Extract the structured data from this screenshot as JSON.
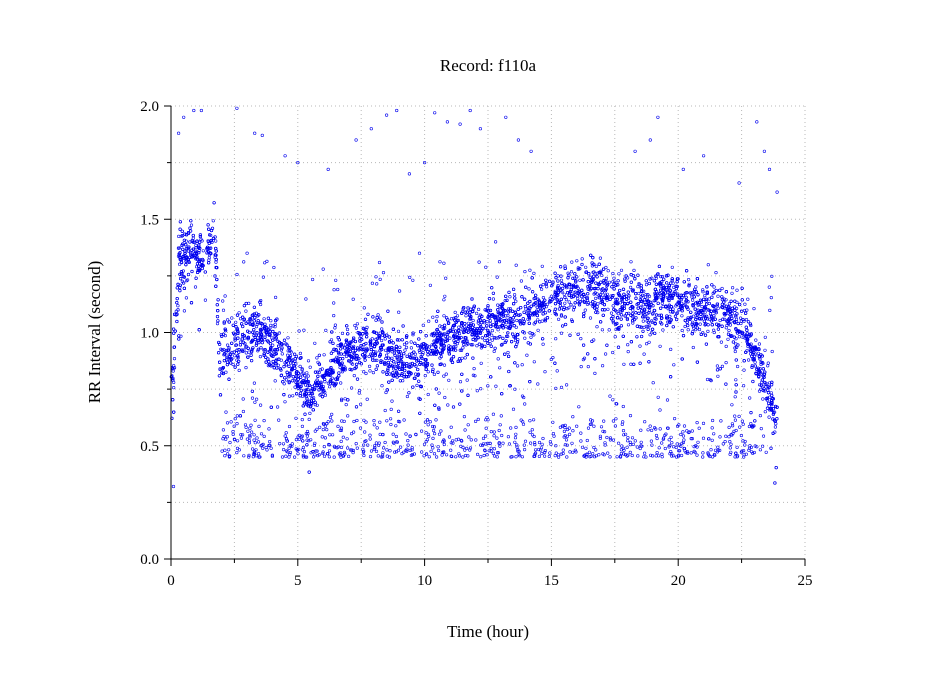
{
  "chart_data": {
    "type": "scatter",
    "title": "Record:  f110a",
    "xlabel": "Time (hour)",
    "ylabel": "RR Interval (second)",
    "xlim": [
      0,
      25
    ],
    "ylim": [
      0,
      2.0
    ],
    "x_ticks": [
      0,
      5,
      10,
      15,
      20,
      25
    ],
    "x_tick_labels": [
      "0",
      "5",
      "10",
      "15",
      "20",
      "25"
    ],
    "x_minor_ticks": [
      2.5,
      7.5,
      12.5,
      17.5,
      22.5
    ],
    "y_ticks": [
      0,
      0.5,
      1.0,
      1.5,
      2.0
    ],
    "y_tick_labels": [
      "0.0",
      "0.5",
      "1.0",
      "1.5",
      "2.0"
    ],
    "y_minor_ticks": [
      0.25,
      0.75,
      1.25,
      1.75
    ],
    "grid": true,
    "marker": "open-circle",
    "color": "#0000ee",
    "series": [
      {
        "trend": [
          [
            0.0,
            0.7,
            0.12
          ],
          [
            0.3,
            1.3,
            0.12
          ],
          [
            0.8,
            1.38,
            0.1
          ],
          [
            1.3,
            1.3,
            0.1
          ],
          [
            1.7,
            1.52,
            0.08
          ],
          [
            1.9,
            0.92,
            0.12
          ],
          [
            2.5,
            0.95,
            0.12
          ],
          [
            3.5,
            1.02,
            0.1
          ],
          [
            4.5,
            0.88,
            0.1
          ],
          [
            5.5,
            0.72,
            0.07
          ],
          [
            6.5,
            0.88,
            0.09
          ],
          [
            7.5,
            0.95,
            0.1
          ],
          [
            8.5,
            0.92,
            0.1
          ],
          [
            9.5,
            0.85,
            0.09
          ],
          [
            10.5,
            0.95,
            0.1
          ],
          [
            11.5,
            1.0,
            0.1
          ],
          [
            12.5,
            1.05,
            0.09
          ],
          [
            13.5,
            1.05,
            0.1
          ],
          [
            14.5,
            1.12,
            0.08
          ],
          [
            15.3,
            1.18,
            0.12
          ],
          [
            16.5,
            1.2,
            0.12
          ],
          [
            17.5,
            1.15,
            0.12
          ],
          [
            18.5,
            1.12,
            0.12
          ],
          [
            19.5,
            1.15,
            0.1
          ],
          [
            20.5,
            1.12,
            0.1
          ],
          [
            21.5,
            1.08,
            0.1
          ],
          [
            22.5,
            1.05,
            0.12
          ],
          [
            23.2,
            0.85,
            0.08
          ],
          [
            23.9,
            0.62,
            0.06
          ]
        ],
        "low_band": {
          "x": [
            2.0,
            23.5
          ],
          "y": [
            0.45,
            0.62
          ]
        },
        "outlier_points": [
          [
            0.3,
            1.88
          ],
          [
            0.5,
            1.95
          ],
          [
            0.9,
            1.98
          ],
          [
            1.2,
            1.98
          ],
          [
            2.6,
            1.99
          ],
          [
            3.3,
            1.88
          ],
          [
            3.6,
            1.87
          ],
          [
            4.5,
            1.78
          ],
          [
            5.0,
            1.75
          ],
          [
            6.2,
            1.72
          ],
          [
            7.3,
            1.85
          ],
          [
            7.9,
            1.9
          ],
          [
            8.5,
            1.96
          ],
          [
            8.9,
            1.98
          ],
          [
            9.4,
            1.7
          ],
          [
            10.0,
            1.75
          ],
          [
            10.4,
            1.97
          ],
          [
            10.9,
            1.93
          ],
          [
            11.4,
            1.92
          ],
          [
            11.8,
            1.98
          ],
          [
            12.2,
            1.9
          ],
          [
            13.2,
            1.95
          ],
          [
            13.7,
            1.85
          ],
          [
            14.2,
            1.8
          ],
          [
            18.3,
            1.8
          ],
          [
            18.9,
            1.85
          ],
          [
            19.2,
            1.95
          ],
          [
            20.2,
            1.72
          ],
          [
            21.0,
            1.78
          ],
          [
            22.4,
            1.66
          ],
          [
            23.1,
            1.93
          ],
          [
            23.4,
            1.8
          ],
          [
            23.6,
            1.72
          ],
          [
            23.9,
            1.62
          ],
          [
            0.1,
            0.32
          ],
          [
            23.0,
            0.47
          ],
          [
            3.0,
            1.35
          ],
          [
            6.0,
            1.28
          ],
          [
            9.8,
            1.35
          ],
          [
            12.8,
            1.4
          ]
        ]
      }
    ]
  }
}
